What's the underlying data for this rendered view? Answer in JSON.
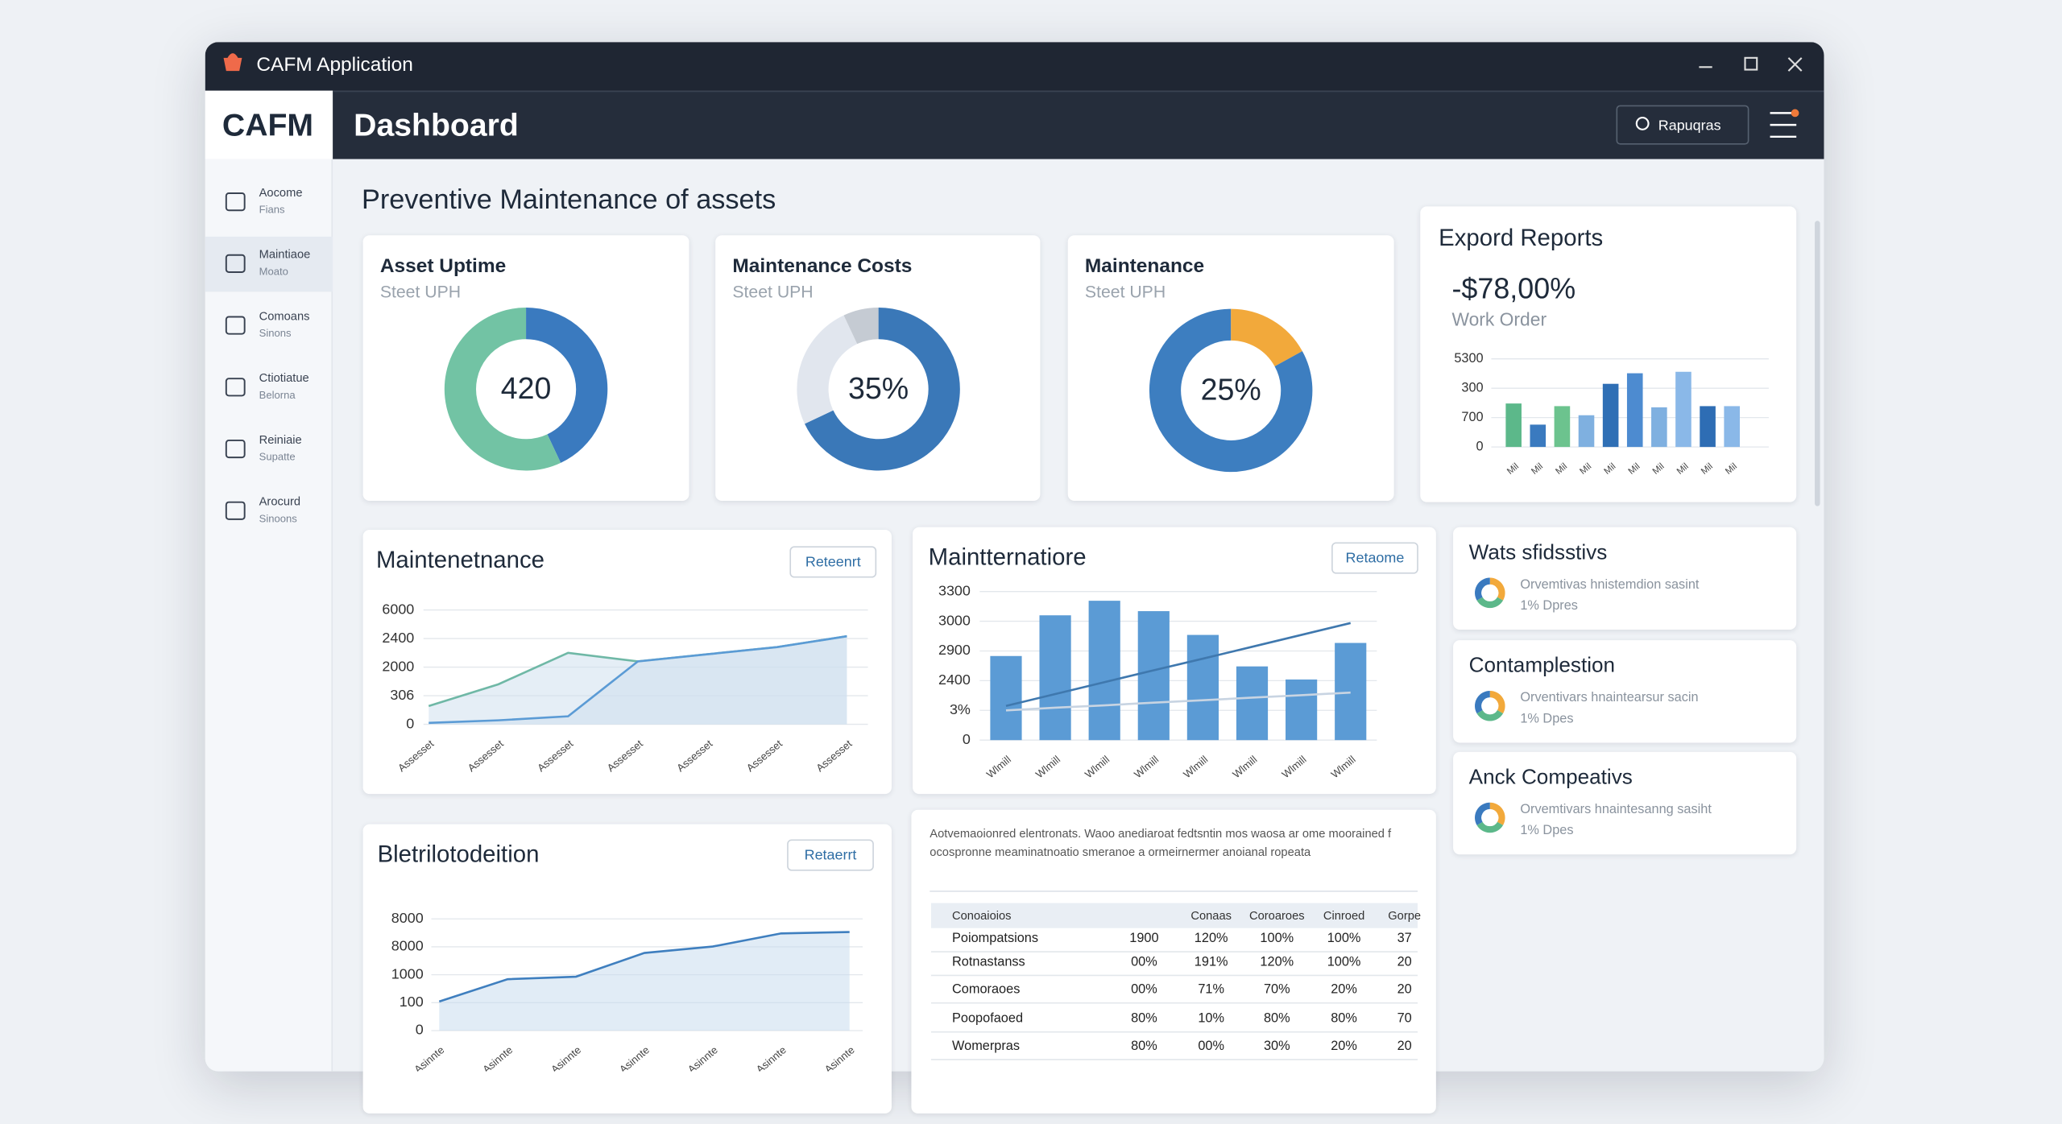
{
  "window": {
    "title": "CAFM Application"
  },
  "sidebar": {
    "logo": "CAFM",
    "items": [
      {
        "label": "Aocome",
        "sub": "Fians"
      },
      {
        "label": "Maintiaoe",
        "sub": "Moato"
      },
      {
        "label": "Comoans",
        "sub": "Sinons"
      },
      {
        "label": "Ctiotiatue",
        "sub": "Belorna"
      },
      {
        "label": "Reiniaie",
        "sub": "Supatte"
      },
      {
        "label": "Arocurd",
        "sub": "Sinoons"
      }
    ]
  },
  "header": {
    "title": "Dashboard",
    "search": "Rapuqras"
  },
  "page_title": "Preventive Maintenance of assets",
  "kpis": [
    {
      "title": "Asset Uptime",
      "subtitle": "Steet UPH",
      "value": "420",
      "segments": [
        {
          "color": "#3a7abf",
          "value": 43
        },
        {
          "color": "#72c3a4",
          "value": 57
        }
      ]
    },
    {
      "title": "Maintenance Costs",
      "subtitle": "Steet UPH",
      "value": "35%",
      "segments": [
        {
          "color": "#3a78b8",
          "value": 68
        },
        {
          "color": "#e1e6ee",
          "value": 25
        },
        {
          "color": "#c5cbd3",
          "value": 7
        }
      ]
    },
    {
      "title": "Maintenance",
      "subtitle": "Steet UPH",
      "value": "25%",
      "segments": [
        {
          "color": "#f2a93b",
          "value": 17
        },
        {
          "color": "#3d7ec0",
          "value": 83
        }
      ]
    }
  ],
  "export": {
    "title": "Expord Reports",
    "value": "-$78,00%",
    "subtitle": "Work Order",
    "chart": {
      "type": "bar",
      "categories": [
        "Mil",
        "Mil",
        "Mil",
        "Mil",
        "Mil",
        "Mil",
        "Mil",
        "Mil",
        "Mil",
        "Mil"
      ],
      "values": [
        1.48,
        0.76,
        1.39,
        1.08,
        2.15,
        2.51,
        1.35,
        2.56,
        1.39,
        1.39
      ],
      "colors": [
        "#5cb88a",
        "#3a7abf",
        "#6cc38e",
        "#7fb0e0",
        "#2f6fb5",
        "#4d8bd0",
        "#7fb0e0",
        "#8ab8e8",
        "#2e6db4",
        "#8ab8e8"
      ],
      "ylim": [
        0,
        3
      ],
      "yticks": [
        0,
        {
          "value": 1,
          "label": "700"
        },
        {
          "value": 2,
          "label": "300"
        },
        {
          "value": 3,
          "label": "5300"
        }
      ]
    }
  },
  "line_card": {
    "title": "Maintenetnance",
    "button": "Reteenrt",
    "chart": {
      "type": "area",
      "categories": [
        "Assesset",
        "Assesset",
        "Assesset",
        "Assesset",
        "Assesset",
        "Assesset",
        "Assesset"
      ],
      "series": [
        {
          "name": "Green",
          "color": "#6fb8a6",
          "values": [
            0.64,
            1.4,
            2.5,
            2.2,
            2.45,
            2.7,
            3.08
          ]
        },
        {
          "name": "Blue",
          "color": "#5b9bd5",
          "values": [
            0.05,
            0.14,
            0.28,
            2.2,
            2.45,
            2.7,
            3.08
          ]
        }
      ],
      "ylim": [
        0,
        4
      ],
      "yticks": [
        0,
        {
          "value": 1,
          "label": "306"
        },
        {
          "value": 2,
          "label": "2000"
        },
        {
          "value": 3,
          "label": "2400"
        },
        {
          "value": 4,
          "label": "6000"
        }
      ]
    }
  },
  "combo_card": {
    "title": "Maintternatiore",
    "button": "Retaome",
    "chart": {
      "type": "combo",
      "categories": [
        "Wlmill",
        "Wlmill",
        "Wlmill",
        "Wlmill",
        "Wlmill",
        "Wlmill",
        "Wlmill",
        "Wlmill"
      ],
      "values": [
        2.83,
        4.2,
        4.69,
        4.34,
        3.54,
        2.48,
        2.04,
        3.27
      ],
      "color": "#5b9bd5",
      "series": [
        {
          "name": "Trend",
          "color": "#3f78ae",
          "values": [
            1.15,
            1.55,
            1.95,
            2.35,
            2.74,
            3.14,
            3.54,
            3.94
          ]
        },
        {
          "name": "Base",
          "color": "#c8d4e2",
          "values": [
            1.0,
            1.09,
            1.17,
            1.26,
            1.34,
            1.43,
            1.51,
            1.6
          ]
        }
      ],
      "ylim": [
        0,
        5
      ],
      "yticks": [
        0,
        {
          "value": 1,
          "label": "3%"
        },
        {
          "value": 2,
          "label": "2400"
        },
        {
          "value": 3,
          "label": "2900"
        },
        {
          "value": 4,
          "label": "3000"
        },
        {
          "value": 5,
          "label": "3300"
        }
      ]
    }
  },
  "area_card": {
    "title": "Bletrilotodeition",
    "button": "Retaerrt",
    "chart": {
      "type": "area",
      "categories": [
        "Asinnte",
        "Asinnte",
        "Asinnte",
        "Asinnte",
        "Asinnte",
        "Asinnte",
        "Asinnte"
      ],
      "series": [
        {
          "name": "Line",
          "color": "#3f7fbf",
          "values": [
            1.04,
            1.84,
            1.93,
            2.78,
            3.01,
            3.48,
            3.53
          ]
        }
      ],
      "ylim": [
        0,
        4
      ],
      "yticks": [
        0,
        {
          "value": 1,
          "label": "100"
        },
        {
          "value": 2,
          "label": "1000"
        },
        {
          "value": 3,
          "label": "8000"
        },
        {
          "value": 4,
          "label": "8000"
        }
      ]
    }
  },
  "notes": {
    "text": "Aotvemaoionred elentronats. Waoo anediaroat fedtsntin mos waosa ar ome moorained f ocospronne meaminatnoatio smeranoe a ormeirnermer anoianal ropeata",
    "table": {
      "header": [
        "Conoaioios",
        "Conaas",
        "Coroaroes",
        "Cinroed",
        "Gorpe"
      ],
      "rows": [
        [
          "Poiompatsions",
          "1900",
          "120%",
          "100%",
          "100%",
          "37"
        ],
        [
          "Rotnastanss",
          "00%",
          "191%",
          "120%",
          "100%",
          "20"
        ],
        [
          "Comoraoes",
          "00%",
          "71%",
          "70%",
          "20%",
          "20"
        ],
        [
          "Poopofaoed",
          "80%",
          "10%",
          "80%",
          "80%",
          "70"
        ],
        [
          "Womerpras",
          "80%",
          "00%",
          "30%",
          "20%",
          "20"
        ]
      ]
    }
  },
  "side_cards": [
    {
      "title": "Wats sfidsstivs",
      "text": "Orvemtivas hnistemdion sasint",
      "note": "1% Dpres"
    },
    {
      "title": "Contamplestion",
      "text": "Orventivars hnaintearsur sacin",
      "note": "1% Dpes"
    },
    {
      "title": "Anck Compeativs",
      "text": "Orvemtivars hnaintesanng sasiht",
      "note": "1% Dpes"
    }
  ]
}
